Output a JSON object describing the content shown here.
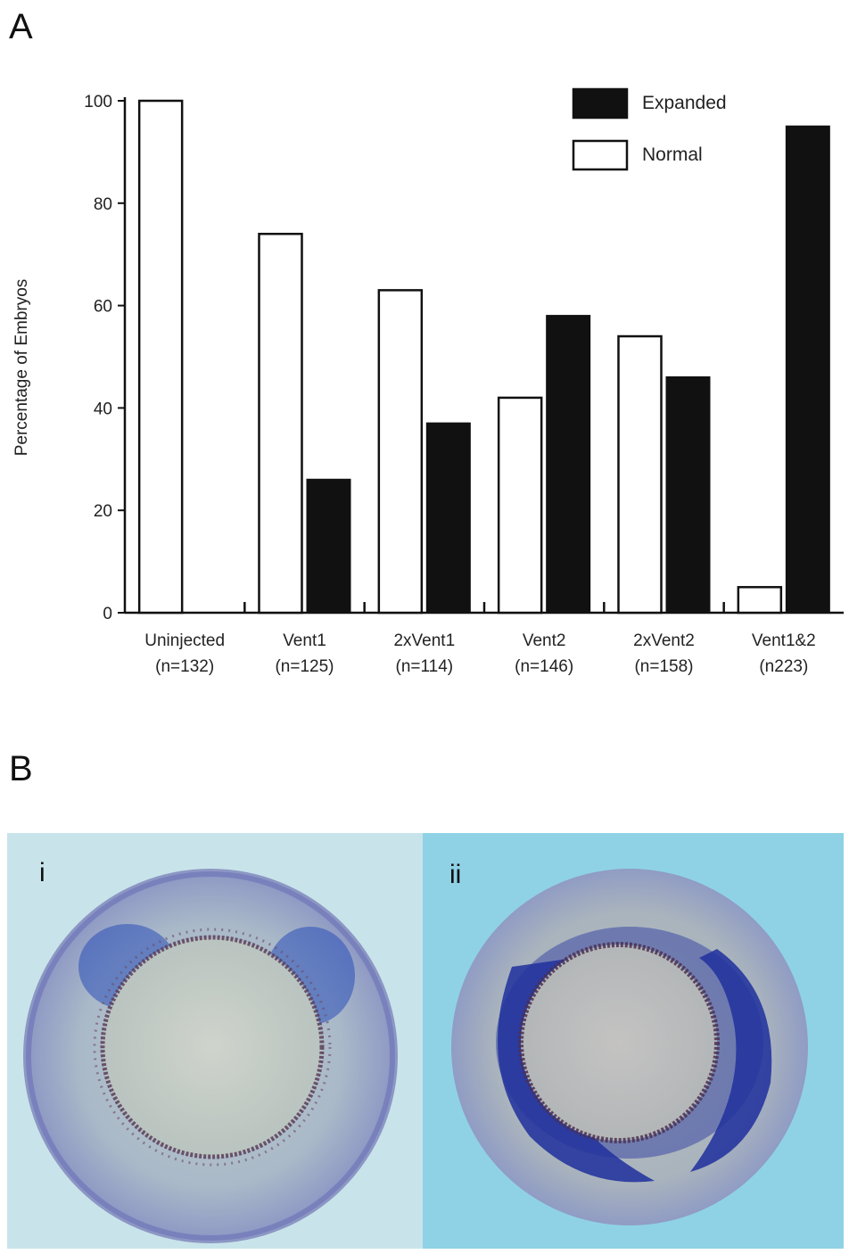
{
  "panel_a_label": "A",
  "panel_b_label": "B",
  "chart_data": {
    "type": "bar",
    "ylabel": "Percentage of Embryos",
    "ylim": [
      0,
      100
    ],
    "yticks": [
      0,
      20,
      40,
      60,
      80,
      100
    ],
    "categories": [
      [
        "Uninjected",
        "(n=132)"
      ],
      [
        "Vent1",
        "(n=125)"
      ],
      [
        "2xVent1",
        "(n=114)"
      ],
      [
        "Vent2",
        "(n=146)"
      ],
      [
        "2xVent2",
        "(n=158)"
      ],
      [
        "Vent1&2",
        "(n223)"
      ]
    ],
    "series": [
      {
        "name": "Normal",
        "color": "#ffffff",
        "values": [
          100,
          74,
          63,
          42,
          54,
          5
        ]
      },
      {
        "name": "Expanded",
        "color": "#111111",
        "values": [
          0,
          26,
          37,
          58,
          46,
          95
        ]
      }
    ],
    "legend": {
      "placement": "top-right",
      "entries": [
        "Expanded",
        "Normal"
      ]
    }
  },
  "photos": [
    {
      "label": "i"
    },
    {
      "label": "ii"
    }
  ]
}
